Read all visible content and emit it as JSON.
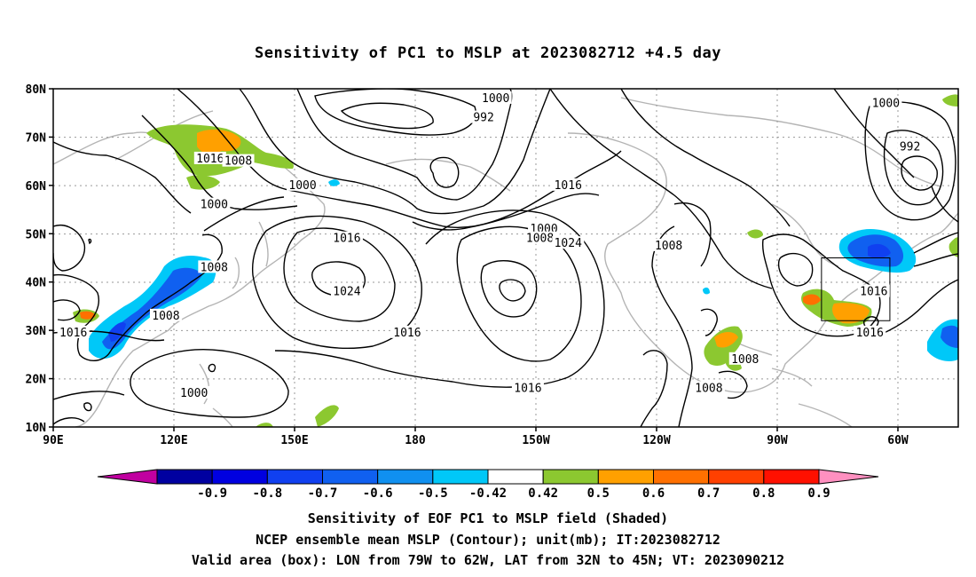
{
  "title": "Sensitivity of PC1 to MSLP at 2023082712 +4.5 day",
  "axes": {
    "lat_labels": [
      "80N",
      "70N",
      "60N",
      "50N",
      "40N",
      "30N",
      "20N",
      "10N"
    ],
    "lon_labels": [
      "90E",
      "120E",
      "150E",
      "180",
      "150W",
      "120W",
      "90W",
      "60W"
    ]
  },
  "colorbar": {
    "labels": [
      "-0.9",
      "-0.8",
      "-0.7",
      "-0.6",
      "-0.5",
      "-0.42",
      "0.42",
      "0.5",
      "0.6",
      "0.7",
      "0.8",
      "0.9"
    ],
    "colors": [
      "#c000a0",
      "#0000a0",
      "#0000e0",
      "#1040f0",
      "#1060f0",
      "#1090f0",
      "#00c8f8",
      "#ffffff",
      "#8cc830",
      "#ffa000",
      "#ff7000",
      "#ff4000",
      "#ff1000",
      "#ff90c0"
    ]
  },
  "contour_labels": [
    {
      "text": "1000",
      "lon": 200,
      "lat": 78
    },
    {
      "text": "992",
      "lon": 197,
      "lat": 74
    },
    {
      "text": "1016",
      "lon": 129,
      "lat": 65.5
    },
    {
      "text": "1008",
      "lon": 136,
      "lat": 65
    },
    {
      "text": "1000",
      "lon": 152,
      "lat": 60
    },
    {
      "text": "1000",
      "lon": 130,
      "lat": 56
    },
    {
      "text": "1016",
      "lon": 218,
      "lat": 60
    },
    {
      "text": "1000",
      "lon": 212,
      "lat": 51
    },
    {
      "text": "1008",
      "lon": 211,
      "lat": 49
    },
    {
      "text": "1016",
      "lon": 163,
      "lat": 49
    },
    {
      "text": "1024",
      "lon": 218,
      "lat": 48
    },
    {
      "text": "1008",
      "lon": 243,
      "lat": 47.5
    },
    {
      "text": "1008",
      "lon": 130,
      "lat": 43
    },
    {
      "text": "1024",
      "lon": 163,
      "lat": 38
    },
    {
      "text": "1008",
      "lon": 118,
      "lat": 33
    },
    {
      "text": "1016",
      "lon": 95,
      "lat": 29.5
    },
    {
      "text": "1016",
      "lon": 178,
      "lat": 29.5
    },
    {
      "text": "1016",
      "lon": 294,
      "lat": 38
    },
    {
      "text": "1016",
      "lon": 293,
      "lat": 29.5
    },
    {
      "text": "1008",
      "lon": 262,
      "lat": 24
    },
    {
      "text": "1008",
      "lon": 253,
      "lat": 18
    },
    {
      "text": "1016",
      "lon": 208,
      "lat": 18
    },
    {
      "text": "1000",
      "lon": 125,
      "lat": 17
    },
    {
      "text": "1000",
      "lon": 297,
      "lat": 77
    },
    {
      "text": "992",
      "lon": 303,
      "lat": 68
    }
  ],
  "captions": {
    "line1": "Sensitivity of EOF PC1 to MSLP field (Shaded)",
    "line2": "NCEP ensemble mean MSLP (Contour); unit(mb); IT:2023082712",
    "line3": "Valid area (box): LON from 79W to 62W, LAT from 32N to 45N; VT: 2023090212"
  },
  "valid_box": {
    "lon_min": -79,
    "lon_max": -62,
    "lat_min": 32,
    "lat_max": 45
  },
  "colors": {
    "contour": "#000000",
    "coastline": "#b4b4b4",
    "grid": "#999999",
    "frame": "#000000"
  }
}
